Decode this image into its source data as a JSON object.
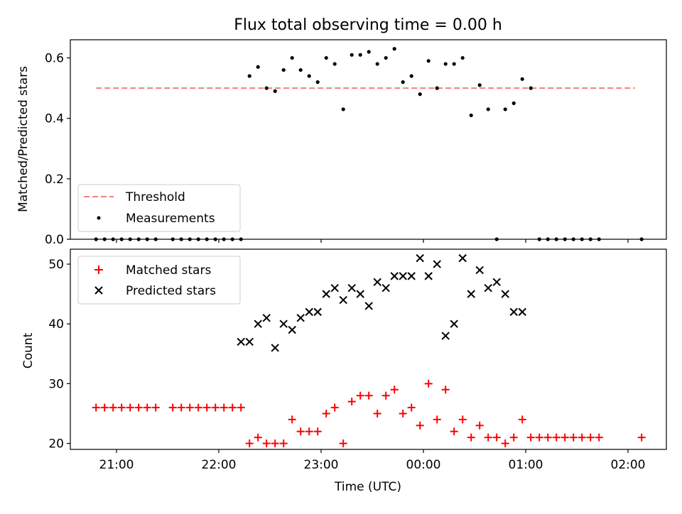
{
  "chart_data": [
    {
      "type": "scatter",
      "title": "Flux total observing time = 0.00 h",
      "xlabel": "",
      "ylabel": "Matched/Predicted stars",
      "ylim": [
        0,
        0.66
      ],
      "x_ticks": [
        "21:00",
        "22:00",
        "23:00",
        "00:00",
        "01:00",
        "02:00"
      ],
      "y_ticks": [
        "0.0",
        "0.2",
        "0.4",
        "0.6"
      ],
      "legend_position": "lower-left",
      "grid": false,
      "threshold": {
        "name": "Threshold",
        "y": 0.5,
        "x_start": "20:48",
        "x_end": "02:04",
        "color": "#f08080"
      },
      "series": [
        {
          "name": "Measurements",
          "color": "#000000",
          "x": [
            "20:48",
            "20:53",
            "20:58",
            "21:03",
            "21:08",
            "21:13",
            "21:18",
            "21:23",
            "21:33",
            "21:38",
            "21:43",
            "21:48",
            "21:53",
            "21:58",
            "22:03",
            "22:08",
            "22:13",
            "22:18",
            "22:23",
            "22:28",
            "22:33",
            "22:38",
            "22:43",
            "22:48",
            "22:53",
            "22:58",
            "23:03",
            "23:08",
            "23:13",
            "23:18",
            "23:23",
            "23:28",
            "23:33",
            "23:38",
            "23:43",
            "23:48",
            "23:53",
            "23:58",
            "00:03",
            "00:08",
            "00:13",
            "00:18",
            "00:23",
            "00:28",
            "00:33",
            "00:38",
            "00:43",
            "00:48",
            "00:53",
            "00:58",
            "01:03",
            "01:08",
            "01:13",
            "01:18",
            "01:23",
            "01:28",
            "01:33",
            "01:38",
            "01:43",
            "02:08"
          ],
          "y": [
            0,
            0,
            0,
            0,
            0,
            0,
            0,
            0,
            0,
            0,
            0,
            0,
            0,
            0,
            0,
            0,
            0,
            0.54,
            0.57,
            0.5,
            0.49,
            0.56,
            0.6,
            0.56,
            0.54,
            0.52,
            0.6,
            0.58,
            0.43,
            0.61,
            0.61,
            0.62,
            0.58,
            0.6,
            0.63,
            0.52,
            0.54,
            0.48,
            0.59,
            0.5,
            0.58,
            0.58,
            0.6,
            0.41,
            0.51,
            0.43,
            0,
            0.43,
            0.45,
            0.53,
            0.5,
            0,
            0,
            0,
            0,
            0,
            0,
            0,
            0,
            0
          ]
        }
      ]
    },
    {
      "type": "scatter",
      "title": "",
      "xlabel": "Time (UTC)",
      "ylabel": "Count",
      "ylim": [
        19,
        52.5
      ],
      "x_ticks": [
        "21:00",
        "22:00",
        "23:00",
        "00:00",
        "01:00",
        "02:00"
      ],
      "y_ticks": [
        "20",
        "30",
        "40",
        "50"
      ],
      "legend_position": "upper-left",
      "grid": false,
      "series": [
        {
          "name": "Matched stars",
          "marker": "plus",
          "color": "#ff0000",
          "x": [
            "20:48",
            "20:53",
            "20:58",
            "21:03",
            "21:08",
            "21:13",
            "21:18",
            "21:23",
            "21:33",
            "21:38",
            "21:43",
            "21:48",
            "21:53",
            "21:58",
            "22:03",
            "22:08",
            "22:13",
            "22:18",
            "22:23",
            "22:28",
            "22:33",
            "22:38",
            "22:43",
            "22:48",
            "22:53",
            "22:58",
            "23:03",
            "23:08",
            "23:13",
            "23:18",
            "23:23",
            "23:28",
            "23:33",
            "23:38",
            "23:43",
            "23:48",
            "23:53",
            "23:58",
            "00:03",
            "00:08",
            "00:13",
            "00:18",
            "00:23",
            "00:28",
            "00:33",
            "00:38",
            "00:43",
            "00:48",
            "00:53",
            "00:58",
            "01:03",
            "01:08",
            "01:13",
            "01:18",
            "01:23",
            "01:28",
            "01:33",
            "01:38",
            "01:43",
            "02:08"
          ],
          "y": [
            26,
            26,
            26,
            26,
            26,
            26,
            26,
            26,
            26,
            26,
            26,
            26,
            26,
            26,
            26,
            26,
            26,
            20,
            21,
            20,
            20,
            20,
            24,
            22,
            22,
            22,
            25,
            26,
            20,
            27,
            28,
            28,
            25,
            28,
            29,
            25,
            26,
            23,
            30,
            24,
            29,
            22,
            24,
            21,
            23,
            21,
            21,
            20,
            21,
            24,
            21,
            21,
            21,
            21,
            21,
            21,
            21,
            21,
            21,
            21
          ]
        },
        {
          "name": "Predicted stars",
          "marker": "x",
          "color": "#000000",
          "x": [
            "22:13",
            "22:18",
            "22:23",
            "22:28",
            "22:33",
            "22:38",
            "22:43",
            "22:48",
            "22:53",
            "22:58",
            "23:03",
            "23:08",
            "23:13",
            "23:18",
            "23:23",
            "23:28",
            "23:33",
            "23:38",
            "23:43",
            "23:48",
            "23:53",
            "23:58",
            "00:03",
            "00:08",
            "00:13",
            "00:18",
            "00:23",
            "00:28",
            "00:33",
            "00:38",
            "00:43",
            "00:48",
            "00:53",
            "00:58"
          ],
          "y": [
            37,
            37,
            40,
            41,
            36,
            40,
            39,
            41,
            42,
            42,
            45,
            46,
            44,
            46,
            45,
            43,
            47,
            46,
            48,
            48,
            48,
            51,
            48,
            50,
            38,
            40,
            51,
            45,
            49,
            46,
            47,
            45,
            42,
            42
          ]
        }
      ]
    }
  ]
}
